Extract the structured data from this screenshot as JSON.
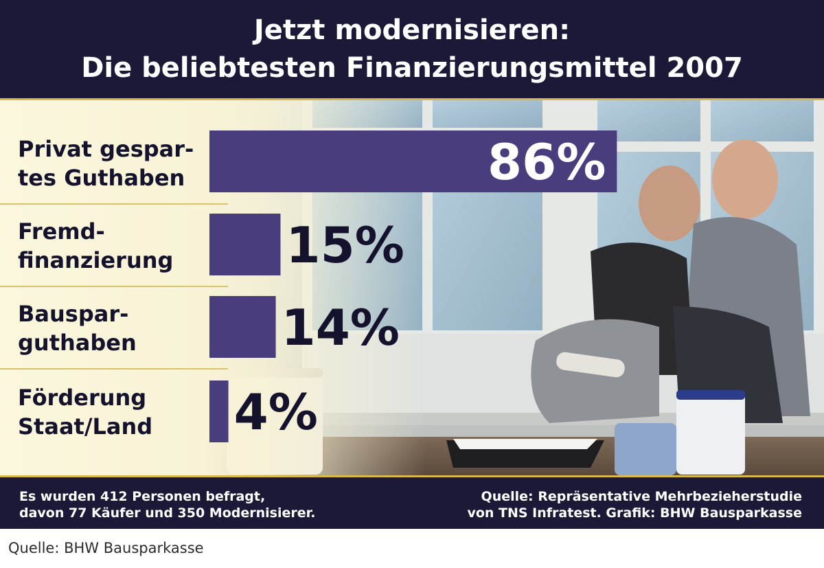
{
  "header": {
    "title_line1": "Jetzt modernisieren:",
    "title_line2": "Die beliebtesten Finanzierungsmittel 2007"
  },
  "chart_data": {
    "type": "bar",
    "orientation": "horizontal",
    "categories": [
      "Privat gespar-\ntes Guthaben",
      "Fremd-\nfinanzierung",
      "Bauspar-\nguthaben",
      "Förderung\nStaat/Land"
    ],
    "values": [
      86,
      15,
      14,
      4
    ],
    "value_labels": [
      "86%",
      "15%",
      "14%",
      "4%"
    ],
    "unit": "%",
    "title": "Die beliebtesten Finanzierungsmittel 2007",
    "xlim": [
      0,
      100
    ],
    "grid": false,
    "legend": "none"
  },
  "footer": {
    "left": "Es wurden 412 Personen befragt,\ndavon 77 Käufer und 350 Modernisierer.",
    "right": "Quelle: Repräsentative Mehrbezieherstudie\nvon TNS Infratest. Grafik: BHW Bausparkasse"
  },
  "caption": "Quelle: BHW Bausparkasse",
  "colors": {
    "bar": "#4a3d7e",
    "dark_navy": "#1b1838",
    "gold": "#d8b84a",
    "label_bg": "#f8f3d6",
    "value_outside": "#15122e",
    "value_inside": "#ffffff"
  }
}
